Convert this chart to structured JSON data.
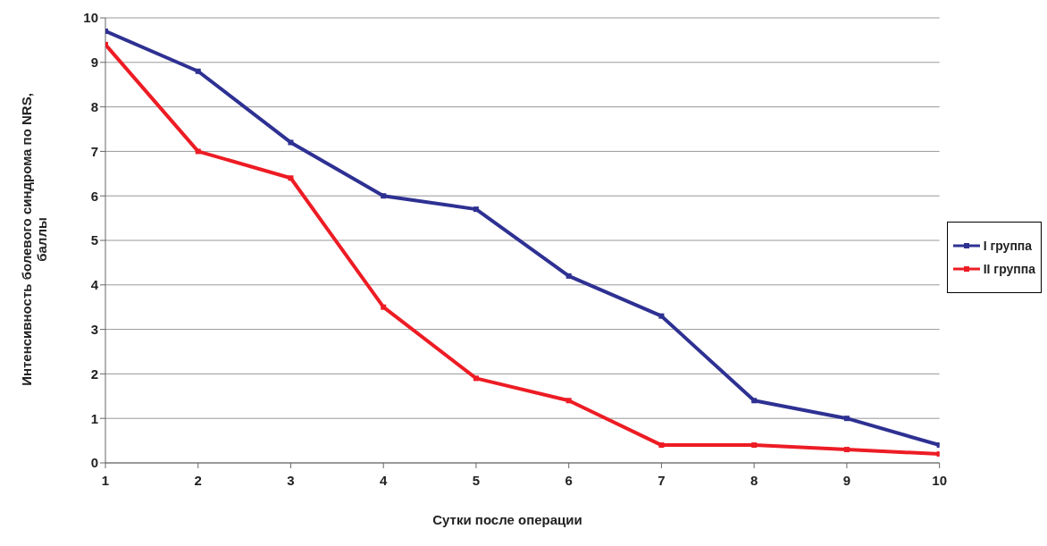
{
  "chart_data": {
    "type": "line",
    "xlabel": "Сутки после операции",
    "ylabel": "Интенсивность болевого синдрома по NRS, баллы",
    "x": [
      1,
      2,
      3,
      4,
      5,
      6,
      7,
      8,
      9,
      10
    ],
    "series": [
      {
        "name": "I группа",
        "color": "#2e3192",
        "values": [
          9.7,
          8.8,
          7.2,
          6.0,
          5.7,
          4.2,
          3.3,
          1.4,
          1.0,
          0.4
        ]
      },
      {
        "name": "II группа",
        "color": "#ed1c24",
        "values": [
          9.4,
          7.0,
          6.4,
          3.5,
          1.9,
          1.4,
          0.4,
          0.4,
          0.3,
          0.2
        ]
      }
    ],
    "xlim": [
      1,
      10
    ],
    "xticks": [
      1,
      2,
      3,
      4,
      5,
      6,
      7,
      8,
      9,
      10
    ],
    "ylim": [
      0,
      10
    ],
    "yticks": [
      0,
      1,
      2,
      3,
      4,
      5,
      6,
      7,
      8,
      9,
      10
    ],
    "grid": "y",
    "legend": "right",
    "marker": "square",
    "line_style": "solid"
  }
}
